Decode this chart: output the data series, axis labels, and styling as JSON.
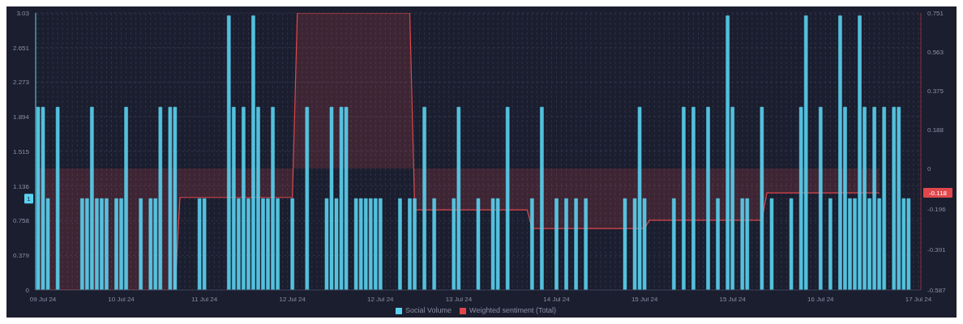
{
  "chart_data": {
    "type": "bar",
    "categories": [
      null,
      "09 Jul 24",
      null,
      null,
      null,
      null,
      null,
      null,
      null,
      null,
      null,
      null,
      null,
      null,
      null,
      null,
      null,
      "10 Jul 24",
      null,
      null,
      null,
      null,
      null,
      null,
      null,
      null,
      null,
      null,
      null,
      null,
      null,
      null,
      null,
      null,
      "11 Jul 24",
      null,
      null,
      null,
      null,
      null,
      null,
      null,
      null,
      null,
      null,
      null,
      null,
      null,
      null,
      null,
      null,
      null,
      "12 Jul 24",
      null,
      null,
      null,
      null,
      null,
      null,
      null,
      null,
      null,
      null,
      null,
      null,
      null,
      null,
      null,
      null,
      null,
      "12 Jul 24",
      null,
      null,
      null,
      null,
      null,
      null,
      null,
      null,
      null,
      null,
      null,
      null,
      null,
      null,
      null,
      "13 Jul 24",
      null,
      null,
      null,
      null,
      null,
      null,
      null,
      null,
      null,
      null,
      null,
      null,
      null,
      null,
      null,
      null,
      null,
      null,
      null,
      "14 Jul 24",
      null,
      null,
      null,
      null,
      null,
      null,
      null,
      null,
      null,
      null,
      null,
      null,
      null,
      null,
      null,
      null,
      null,
      "15 Jul 24",
      null,
      null,
      null,
      null,
      null,
      null,
      null,
      null,
      null,
      null,
      null,
      null,
      null,
      null,
      null,
      null,
      null,
      "15 Jul 24",
      null,
      null,
      null,
      null,
      null,
      null,
      null,
      null,
      null,
      null,
      null,
      null,
      null,
      null,
      null,
      null,
      null,
      "16 Jul 24",
      null,
      null,
      null,
      null,
      null,
      null,
      null,
      null,
      null,
      null,
      null,
      null,
      null,
      null,
      null,
      null,
      null,
      null,
      null,
      "17 Jul 24"
    ],
    "series": [
      {
        "name": "Social Volume",
        "color": "#5ad2f0",
        "axis": "y",
        "values": [
          2,
          2,
          1,
          0,
          2,
          0,
          0,
          0,
          0,
          1,
          1,
          2,
          1,
          1,
          1,
          0,
          1,
          1,
          2,
          0,
          0,
          1,
          0,
          1,
          1,
          2,
          0,
          2,
          2,
          0,
          0,
          0,
          0,
          1,
          1,
          0,
          0,
          0,
          0,
          3,
          2,
          1,
          2,
          1,
          3,
          2,
          1,
          1,
          2,
          1,
          0,
          0,
          1,
          0,
          0,
          2,
          0,
          0,
          0,
          1,
          2,
          1,
          2,
          2,
          0,
          1,
          1,
          1,
          1,
          1,
          1,
          0,
          0,
          0,
          1,
          0,
          1,
          1,
          0,
          2,
          0,
          1,
          0,
          0,
          0,
          1,
          2,
          0,
          0,
          0,
          1,
          0,
          0,
          1,
          1,
          0,
          2,
          0,
          0,
          0,
          0,
          1,
          0,
          2,
          0,
          0,
          1,
          0,
          1,
          0,
          1,
          0,
          1,
          0,
          0,
          0,
          0,
          0,
          0,
          0,
          1,
          0,
          1,
          2,
          1,
          0,
          0,
          0,
          0,
          0,
          1,
          0,
          2,
          0,
          2,
          0,
          0,
          2,
          0,
          1,
          0,
          3,
          2,
          0,
          1,
          1,
          0,
          0,
          2,
          0,
          1,
          0,
          0,
          0,
          1,
          0,
          2,
          3,
          0,
          0,
          2,
          0,
          1,
          0,
          3,
          2,
          1,
          1,
          3,
          2,
          1,
          2,
          1,
          2,
          0,
          2,
          2,
          1,
          1,
          0,
          0
        ]
      },
      {
        "name": "Weighted sentiment (Total)",
        "type": "area",
        "color": "#e0474c",
        "axis": "y2",
        "values": [
          -0.587,
          -0.587,
          -0.587,
          -0.587,
          -0.587,
          -0.587,
          -0.587,
          -0.587,
          -0.587,
          -0.587,
          -0.587,
          -0.587,
          -0.587,
          -0.587,
          -0.587,
          -0.587,
          -0.587,
          -0.587,
          -0.587,
          -0.587,
          -0.587,
          -0.587,
          -0.587,
          -0.587,
          -0.587,
          -0.587,
          -0.587,
          -0.587,
          -0.587,
          -0.14,
          -0.14,
          -0.14,
          -0.14,
          -0.14,
          -0.14,
          -0.14,
          -0.14,
          -0.14,
          -0.14,
          -0.14,
          -0.14,
          -0.14,
          -0.14,
          -0.14,
          -0.14,
          -0.14,
          -0.14,
          -0.14,
          -0.14,
          -0.14,
          -0.14,
          -0.14,
          -0.14,
          0.751,
          0.751,
          0.751,
          0.751,
          0.751,
          0.751,
          0.751,
          0.751,
          0.751,
          0.751,
          0.751,
          0.751,
          0.751,
          0.751,
          0.751,
          0.751,
          0.751,
          0.751,
          0.751,
          0.751,
          0.751,
          0.751,
          0.751,
          0.751,
          -0.2,
          -0.2,
          -0.2,
          -0.2,
          -0.2,
          -0.2,
          -0.2,
          -0.2,
          -0.2,
          -0.2,
          -0.2,
          -0.2,
          -0.2,
          -0.2,
          -0.2,
          -0.2,
          -0.2,
          -0.2,
          -0.2,
          -0.2,
          -0.2,
          -0.2,
          -0.2,
          -0.2,
          -0.29,
          -0.29,
          -0.29,
          -0.29,
          -0.29,
          -0.29,
          -0.29,
          -0.29,
          -0.29,
          -0.29,
          -0.29,
          -0.29,
          -0.29,
          -0.29,
          -0.29,
          -0.29,
          -0.29,
          -0.29,
          -0.29,
          -0.29,
          -0.29,
          -0.29,
          -0.29,
          -0.29,
          -0.25,
          -0.25,
          -0.25,
          -0.25,
          -0.25,
          -0.25,
          -0.25,
          -0.25,
          -0.25,
          -0.25,
          -0.25,
          -0.25,
          -0.25,
          -0.25,
          -0.25,
          -0.25,
          -0.25,
          -0.25,
          -0.25,
          -0.25,
          -0.25,
          -0.25,
          -0.25,
          -0.25,
          -0.118,
          -0.118,
          -0.118,
          -0.118,
          -0.118,
          -0.118,
          -0.118,
          -0.118,
          -0.118,
          -0.118,
          -0.118,
          -0.118,
          -0.118,
          -0.118,
          -0.118,
          -0.118,
          -0.118,
          -0.118,
          -0.118,
          -0.118,
          -0.118,
          -0.118,
          -0.118,
          -0.118,
          null,
          null,
          null,
          null,
          null,
          null,
          null,
          null
        ]
      }
    ],
    "ylim": [
      0,
      3.03
    ],
    "yticks": [
      0,
      0.379,
      0.758,
      1.136,
      1.515,
      1.894,
      2.273,
      2.651,
      3.03
    ],
    "y2lim": [
      -0.587,
      0.751
    ],
    "y2ticks": [
      -0.587,
      -0.391,
      -0.196,
      0,
      0.188,
      0.375,
      0.563,
      0.751
    ],
    "annotations": [
      "1",
      "-0.118"
    ],
    "grid": true,
    "legend": "bottom"
  }
}
